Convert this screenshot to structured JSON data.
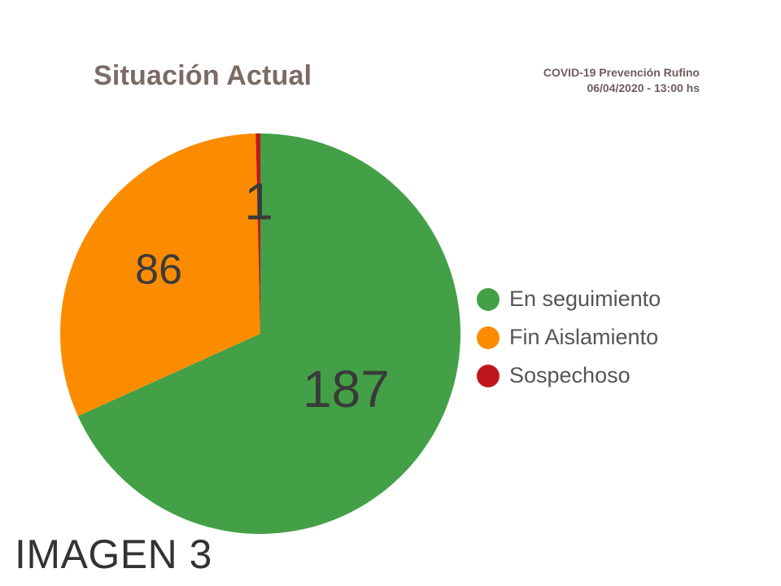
{
  "header": {
    "title": "Situación Actual",
    "source_line1": "COVID-19 Prevención Rufino",
    "source_line2": "06/04/2020 - 13:00 hs"
  },
  "chart_data": {
    "type": "pie",
    "title": "Situación Actual",
    "legend_position": "right",
    "slices": [
      {
        "name": "En seguimiento",
        "value": 187,
        "color": "#43a047"
      },
      {
        "name": "Fin Aislamiento",
        "value": 86,
        "color": "#fb8c00"
      },
      {
        "name": "Sospechoso",
        "value": 1,
        "color": "#c0171d"
      }
    ]
  },
  "caption": "IMAGEN 3"
}
